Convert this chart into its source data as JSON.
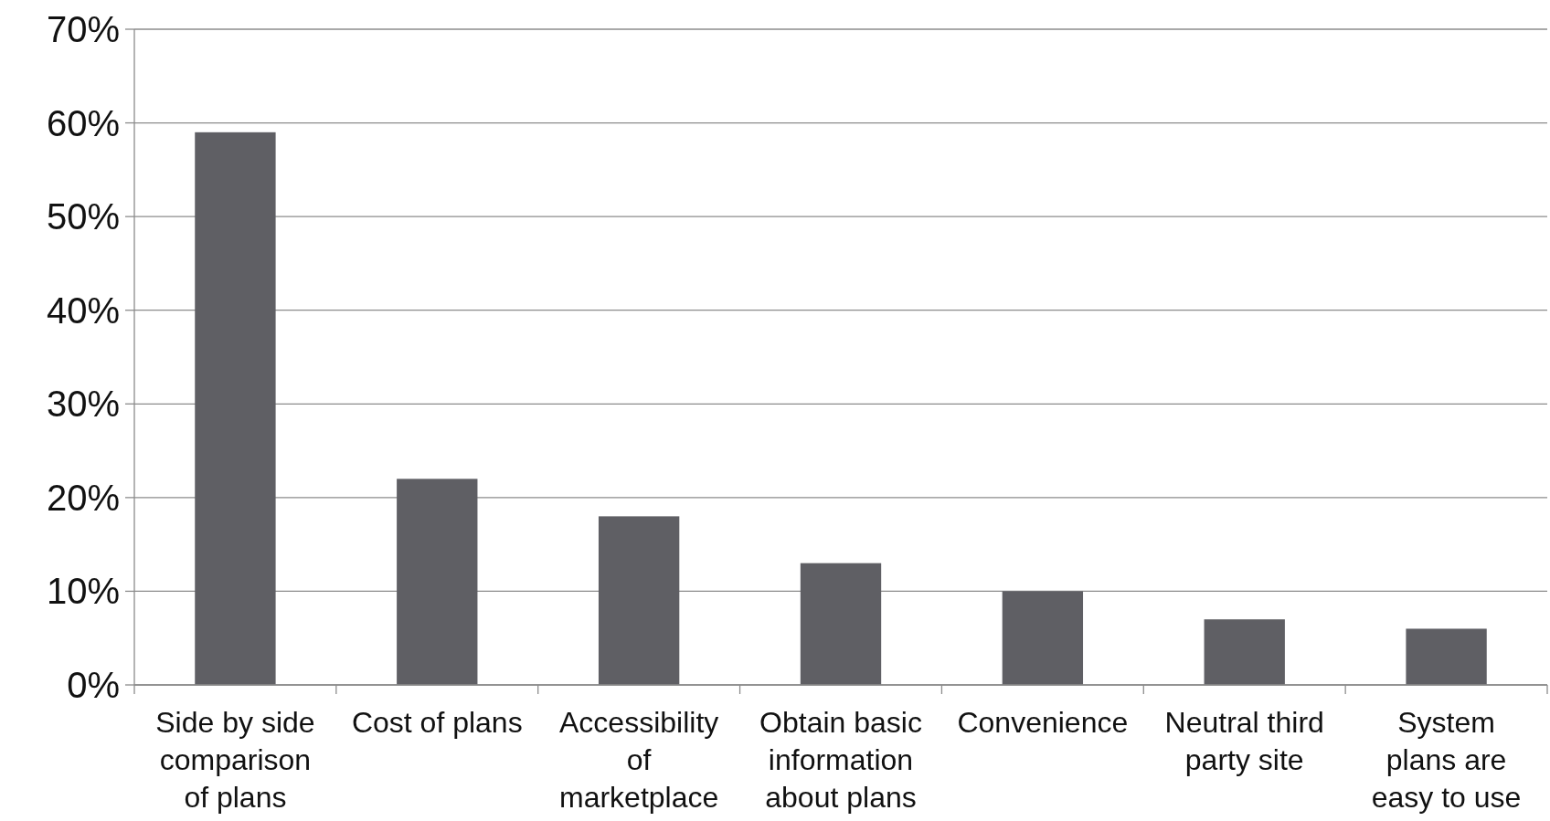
{
  "chart_data": {
    "type": "bar",
    "categories": [
      "Side by side\ncomparison\nof plans",
      "Cost of plans",
      "Accessibility\nof\nmarketplace",
      "Obtain basic\ninformation\nabout plans",
      "Convenience",
      "Neutral third\nparty site",
      "System\nplans are\neasy to use"
    ],
    "values": [
      59,
      22,
      18,
      13,
      10,
      7,
      6
    ],
    "color": "#5f5f64",
    "ylim": [
      0,
      70
    ],
    "yticks": [
      {
        "value": 0,
        "label": "0%"
      },
      {
        "value": 10,
        "label": "10%"
      },
      {
        "value": 20,
        "label": "20%"
      },
      {
        "value": 30,
        "label": "30%"
      },
      {
        "value": 40,
        "label": "40%"
      },
      {
        "value": 50,
        "label": "50%"
      },
      {
        "value": 60,
        "label": "60%"
      },
      {
        "value": 70,
        "label": "70%"
      }
    ],
    "grid": "y"
  }
}
